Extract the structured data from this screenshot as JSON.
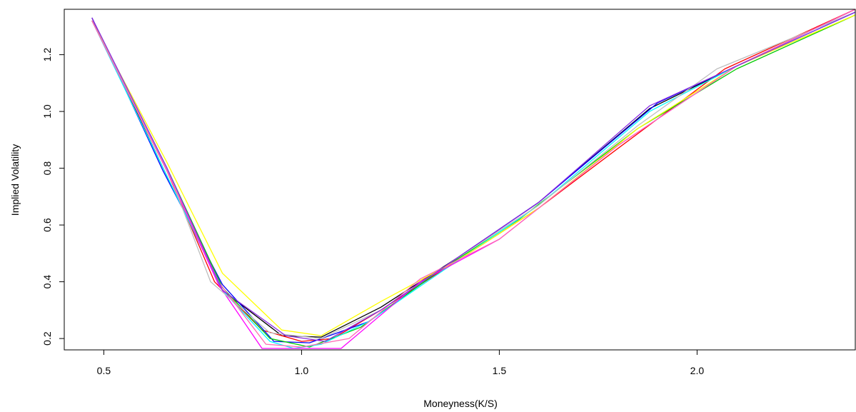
{
  "chart_data": {
    "type": "line",
    "title": "",
    "xlabel": "Moneyness(K/S)",
    "ylabel": "Implied Volatility",
    "xlim": [
      0.4,
      2.4
    ],
    "ylim": [
      0.16,
      1.36
    ],
    "xticks": [
      0.5,
      1.0,
      1.5,
      2.0
    ],
    "xtick_labels": [
      "0.5",
      "1.0",
      "1.5",
      "2.0"
    ],
    "yticks": [
      0.2,
      0.4,
      0.6,
      0.8,
      1.0,
      1.2
    ],
    "ytick_labels": [
      "0.2",
      "0.4",
      "0.6",
      "0.8",
      "1.0",
      "1.2"
    ],
    "grid": false,
    "legend": "none",
    "series": [
      {
        "color": "#000000",
        "points": [
          [
            0.47,
            1.33
          ],
          [
            0.65,
            0.8
          ],
          [
            0.8,
            0.37
          ],
          [
            0.95,
            0.21
          ],
          [
            1.05,
            0.205
          ],
          [
            1.2,
            0.31
          ],
          [
            1.4,
            0.49
          ],
          [
            1.6,
            0.68
          ],
          [
            1.88,
            1.01
          ],
          [
            2.1,
            1.16
          ],
          [
            2.4,
            1.36
          ]
        ]
      },
      {
        "color": "#ff0000",
        "points": [
          [
            0.47,
            1.32
          ],
          [
            0.66,
            0.79
          ],
          [
            0.78,
            0.4
          ],
          [
            0.9,
            0.23
          ],
          [
            1.0,
            0.19
          ],
          [
            1.08,
            0.2
          ],
          [
            1.2,
            0.3
          ],
          [
            1.4,
            0.48
          ],
          [
            1.6,
            0.66
          ],
          [
            1.8,
            0.87
          ],
          [
            2.07,
            1.15
          ],
          [
            2.4,
            1.36
          ]
        ]
      },
      {
        "color": "#0000ff",
        "points": [
          [
            0.47,
            1.33
          ],
          [
            0.65,
            0.79
          ],
          [
            0.8,
            0.39
          ],
          [
            0.93,
            0.19
          ],
          [
            1.02,
            0.185
          ],
          [
            1.17,
            0.26
          ],
          [
            1.4,
            0.49
          ],
          [
            1.6,
            0.68
          ],
          [
            1.9,
            1.03
          ],
          [
            2.1,
            1.16
          ],
          [
            2.4,
            1.35
          ]
        ]
      },
      {
        "color": "#00cc00",
        "points": [
          [
            0.47,
            1.32
          ],
          [
            0.66,
            0.8
          ],
          [
            0.8,
            0.38
          ],
          [
            0.92,
            0.2
          ],
          [
            1.02,
            0.17
          ],
          [
            1.15,
            0.24
          ],
          [
            1.35,
            0.44
          ],
          [
            1.55,
            0.62
          ],
          [
            1.85,
            0.94
          ],
          [
            2.1,
            1.15
          ],
          [
            2.4,
            1.34
          ]
        ]
      },
      {
        "color": "#00ffff",
        "points": [
          [
            0.47,
            1.32
          ],
          [
            0.65,
            0.8
          ],
          [
            0.8,
            0.37
          ],
          [
            0.92,
            0.19
          ],
          [
            0.98,
            0.165
          ],
          [
            1.05,
            0.18
          ],
          [
            1.17,
            0.26
          ],
          [
            1.4,
            0.48
          ],
          [
            1.6,
            0.67
          ],
          [
            1.88,
            1.0
          ],
          [
            2.1,
            1.16
          ],
          [
            2.4,
            1.35
          ]
        ]
      },
      {
        "color": "#ff00ff",
        "points": [
          [
            0.47,
            1.32
          ],
          [
            0.66,
            0.79
          ],
          [
            0.79,
            0.39
          ],
          [
            0.9,
            0.165
          ],
          [
            1.1,
            0.165
          ],
          [
            1.3,
            0.4
          ],
          [
            1.5,
            0.55
          ],
          [
            1.8,
            0.88
          ],
          [
            2.1,
            1.16
          ],
          [
            2.4,
            1.36
          ]
        ]
      },
      {
        "color": "#ffff00",
        "points": [
          [
            0.47,
            1.32
          ],
          [
            0.66,
            0.82
          ],
          [
            0.8,
            0.43
          ],
          [
            0.95,
            0.23
          ],
          [
            1.05,
            0.21
          ],
          [
            1.2,
            0.33
          ],
          [
            1.4,
            0.48
          ],
          [
            1.6,
            0.66
          ],
          [
            1.85,
            0.94
          ],
          [
            2.1,
            1.16
          ],
          [
            2.4,
            1.34
          ]
        ]
      },
      {
        "color": "#bebebe",
        "points": [
          [
            0.47,
            1.32
          ],
          [
            0.66,
            0.8
          ],
          [
            0.77,
            0.4
          ],
          [
            0.92,
            0.22
          ],
          [
            1.05,
            0.2
          ],
          [
            1.2,
            0.3
          ],
          [
            1.4,
            0.49
          ],
          [
            1.6,
            0.67
          ],
          [
            1.85,
            0.95
          ],
          [
            2.05,
            1.15
          ],
          [
            2.4,
            1.35
          ]
        ]
      },
      {
        "color": "#ff69b4",
        "points": [
          [
            0.47,
            1.32
          ],
          [
            0.66,
            0.79
          ],
          [
            0.79,
            0.4
          ],
          [
            0.91,
            0.18
          ],
          [
            1.0,
            0.17
          ],
          [
            1.12,
            0.2
          ],
          [
            1.3,
            0.41
          ],
          [
            1.5,
            0.55
          ],
          [
            1.8,
            0.88
          ],
          [
            2.1,
            1.16
          ],
          [
            2.4,
            1.36
          ]
        ]
      },
      {
        "color": "#8a2be2",
        "points": [
          [
            0.47,
            1.33
          ],
          [
            0.66,
            0.8
          ],
          [
            0.8,
            0.37
          ],
          [
            0.96,
            0.21
          ],
          [
            1.06,
            0.19
          ],
          [
            1.2,
            0.3
          ],
          [
            1.4,
            0.49
          ],
          [
            1.6,
            0.68
          ],
          [
            1.88,
            1.02
          ],
          [
            2.1,
            1.16
          ],
          [
            2.4,
            1.35
          ]
        ]
      }
    ]
  }
}
